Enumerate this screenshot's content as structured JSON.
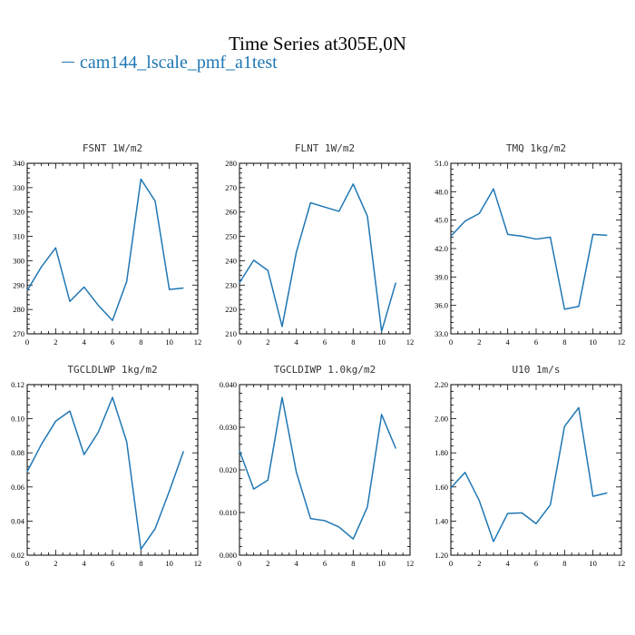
{
  "title": "Time Series at305E,0N",
  "legend": "cam144_lscale_pmf_a1test",
  "colors": {
    "line": "#1f77b4",
    "axis": "#000000"
  },
  "chart_data": [
    {
      "type": "line",
      "title": "FSNT   1W/m2",
      "x": [
        0,
        1,
        2,
        3,
        4,
        5,
        6,
        7,
        8,
        9,
        10,
        11
      ],
      "values": [
        287.8,
        297.5,
        305.3,
        283.3,
        289.2,
        281.7,
        275.5,
        291.5,
        333.5,
        324.5,
        288.2,
        288.8
      ],
      "xlim": [
        0,
        12
      ],
      "ylim": [
        270,
        340
      ],
      "xticks": [
        "0",
        "2",
        "4",
        "6",
        "8",
        "10",
        "12"
      ],
      "yticks": [
        "270",
        "280",
        "290",
        "300",
        "310",
        "320",
        "330",
        "340"
      ]
    },
    {
      "type": "line",
      "title": "FLNT   1W/m2",
      "x": [
        0,
        1,
        2,
        3,
        4,
        5,
        6,
        7,
        8,
        9,
        10,
        11
      ],
      "values": [
        231.0,
        240.2,
        236.0,
        213.0,
        243.5,
        263.8,
        262.0,
        260.3,
        271.5,
        258.3,
        211.0,
        231.0
      ],
      "xlim": [
        0,
        12
      ],
      "ylim": [
        210,
        280
      ],
      "xticks": [
        "0",
        "2",
        "4",
        "6",
        "8",
        "10",
        "12"
      ],
      "yticks": [
        "210",
        "220",
        "230",
        "240",
        "250",
        "260",
        "270",
        "280"
      ]
    },
    {
      "type": "line",
      "title": "TMQ   1kg/m2",
      "x": [
        0,
        1,
        2,
        3,
        4,
        5,
        6,
        7,
        8,
        9,
        10,
        11
      ],
      "values": [
        43.3,
        44.9,
        45.7,
        48.3,
        43.5,
        43.3,
        43.0,
        43.2,
        35.6,
        35.9,
        43.5,
        43.4
      ],
      "xlim": [
        0,
        12
      ],
      "ylim": [
        33,
        51
      ],
      "xticks": [
        "0",
        "2",
        "4",
        "6",
        "8",
        "10",
        "12"
      ],
      "yticks": [
        "33.0",
        "36.0",
        "39.0",
        "42.0",
        "45.0",
        "48.0",
        "51.0"
      ]
    },
    {
      "type": "line",
      "title": "TGCLDLWP   1kg/m2",
      "x": [
        0,
        1,
        2,
        3,
        4,
        5,
        6,
        7,
        8,
        9,
        10,
        11
      ],
      "values": [
        0.069,
        0.085,
        0.0985,
        0.1045,
        0.079,
        0.092,
        0.1125,
        0.0865,
        0.0235,
        0.0355,
        0.0575,
        0.081
      ],
      "xlim": [
        0,
        12
      ],
      "ylim": [
        0.02,
        0.12
      ],
      "xticks": [
        "0",
        "2",
        "4",
        "6",
        "8",
        "10",
        "12"
      ],
      "yticks": [
        "0.02",
        "0.04",
        "0.06",
        "0.08",
        "0.10",
        "0.12"
      ]
    },
    {
      "type": "line",
      "title": "TGCLDIWP   1.0kg/m2",
      "x": [
        0,
        1,
        2,
        3,
        4,
        5,
        6,
        7,
        8,
        9,
        10,
        11
      ],
      "values": [
        0.0245,
        0.0155,
        0.0176,
        0.037,
        0.0195,
        0.0086,
        0.0081,
        0.0066,
        0.0038,
        0.0113,
        0.033,
        0.025
      ],
      "xlim": [
        0,
        12
      ],
      "ylim": [
        0,
        0.04
      ],
      "xticks": [
        "0",
        "2",
        "4",
        "6",
        "8",
        "10",
        "12"
      ],
      "yticks": [
        "0.000",
        "0.010",
        "0.020",
        "0.030",
        "0.040"
      ]
    },
    {
      "type": "line",
      "title": "U10   1m/s",
      "x": [
        0,
        1,
        2,
        3,
        4,
        5,
        6,
        7,
        8,
        9,
        10,
        11
      ],
      "values": [
        1.595,
        1.685,
        1.52,
        1.28,
        1.445,
        1.448,
        1.385,
        1.495,
        1.955,
        2.065,
        1.545,
        1.565
      ],
      "xlim": [
        0,
        12
      ],
      "ylim": [
        1.2,
        2.2
      ],
      "xticks": [
        "0",
        "2",
        "4",
        "6",
        "8",
        "10",
        "12"
      ],
      "yticks": [
        "1.20",
        "1.40",
        "1.60",
        "1.80",
        "2.00",
        "2.20"
      ]
    }
  ]
}
